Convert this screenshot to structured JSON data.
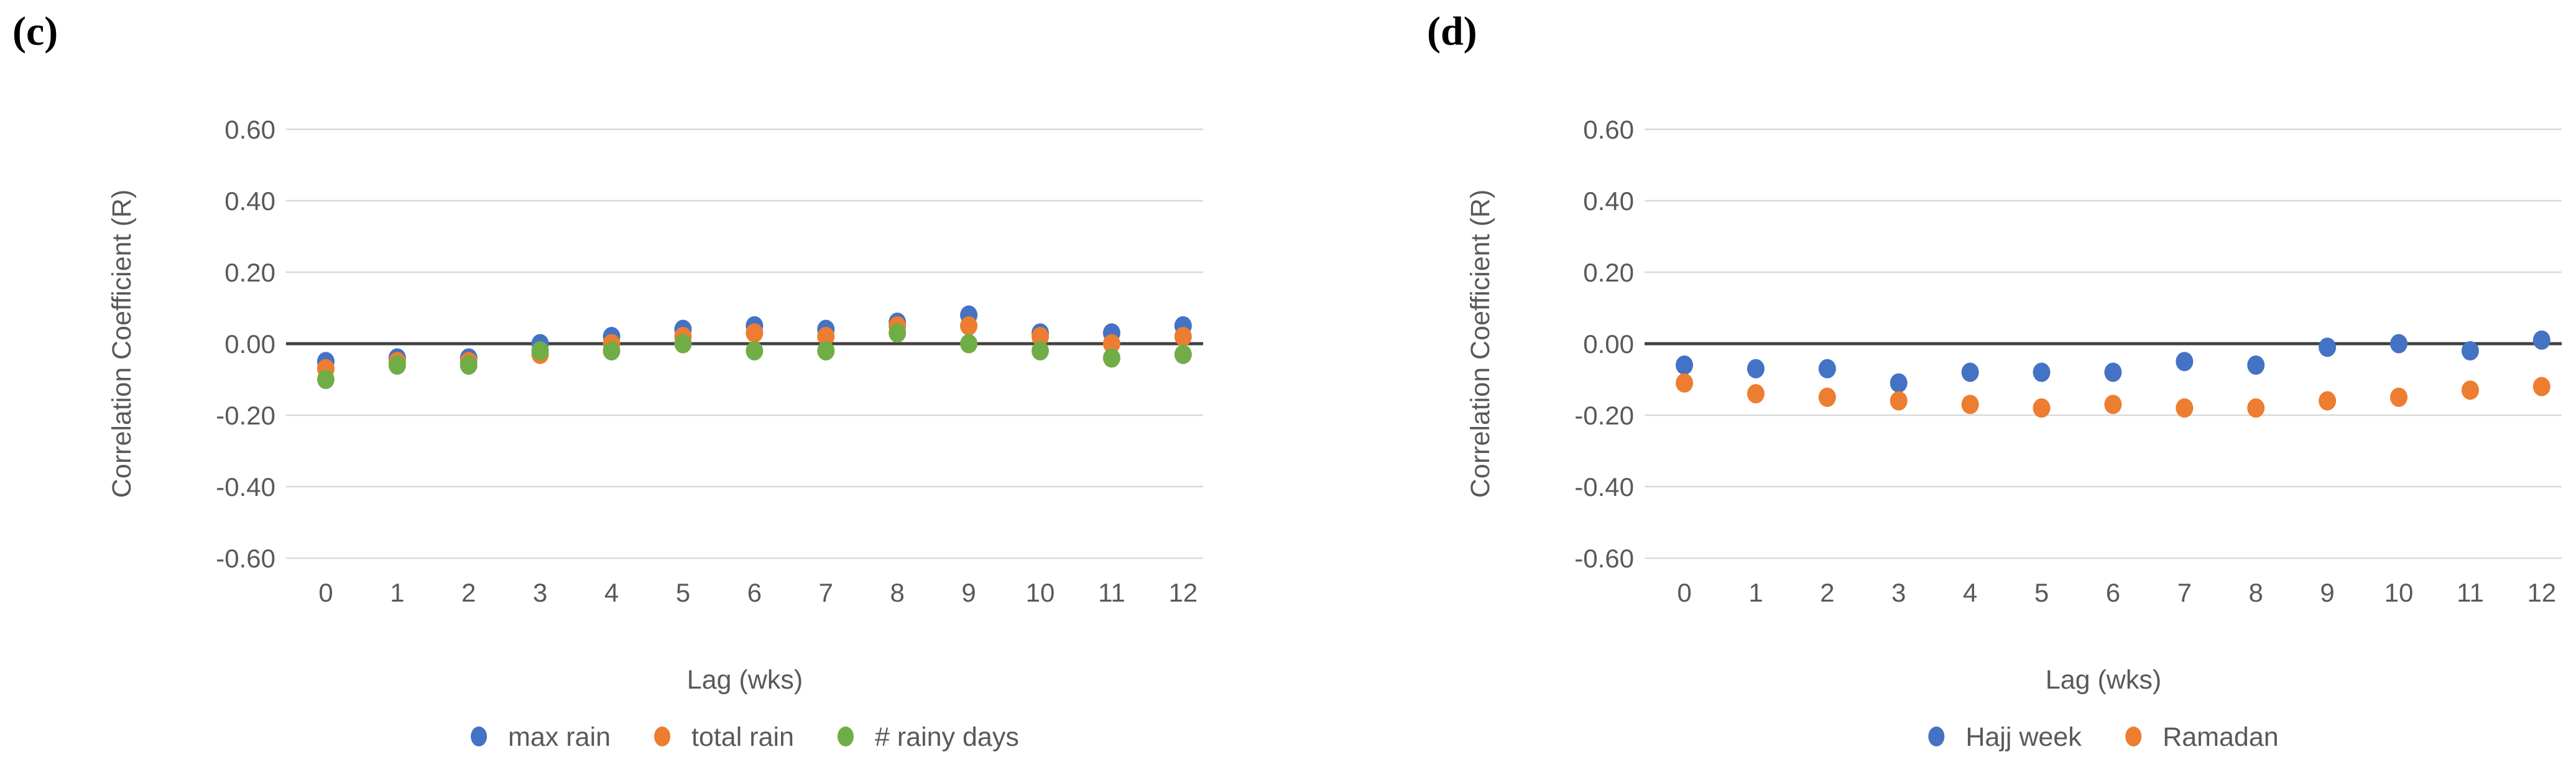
{
  "figure": {
    "background": "#ffffff",
    "text_color": "#595959",
    "grid_color": "#d9d9d9",
    "zero_line_color": "#404040",
    "panel_label_color": "#000000"
  },
  "colors": {
    "blue": "#4472C4",
    "orange": "#ED7D31",
    "green": "#70AD47"
  },
  "chart_data": [
    {
      "type": "scatter",
      "panel_label": "(c)",
      "title": "",
      "xlabel": "Lag (wks)",
      "ylabel": "Correlation Coefficient (R)",
      "x": [
        0,
        1,
        2,
        3,
        4,
        5,
        6,
        7,
        8,
        9,
        10,
        11,
        12
      ],
      "xtick_labels": [
        "0",
        "1",
        "2",
        "3",
        "4",
        "5",
        "6",
        "7",
        "8",
        "9",
        "10",
        "11",
        "12"
      ],
      "ylim": [
        -0.6,
        0.6
      ],
      "ytick_step": 0.2,
      "ytick_labels": [
        "0.60",
        "0.40",
        "0.20",
        "0.00",
        "-0.20",
        "-0.40",
        "-0.60"
      ],
      "grid": "horizontal",
      "zero_line": true,
      "legend_position": "bottom",
      "series": [
        {
          "name": "max rain",
          "color_key": "blue",
          "values": [
            -0.05,
            -0.04,
            -0.04,
            0.0,
            0.02,
            0.04,
            0.05,
            0.04,
            0.06,
            0.08,
            0.03,
            0.03,
            0.05
          ]
        },
        {
          "name": "total rain",
          "color_key": "orange",
          "values": [
            -0.07,
            -0.05,
            -0.05,
            -0.03,
            0.0,
            0.02,
            0.03,
            0.02,
            0.05,
            0.05,
            0.02,
            0.0,
            0.02
          ]
        },
        {
          "name": "# rainy days",
          "color_key": "green",
          "values": [
            -0.1,
            -0.06,
            -0.06,
            -0.02,
            -0.02,
            0.0,
            -0.02,
            -0.02,
            0.03,
            0.0,
            -0.02,
            -0.04,
            -0.03
          ]
        }
      ]
    },
    {
      "type": "scatter",
      "panel_label": "(d)",
      "title": "",
      "xlabel": "Lag (wks)",
      "ylabel": "Correlation Coefficient (R)",
      "x": [
        0,
        1,
        2,
        3,
        4,
        5,
        6,
        7,
        8,
        9,
        10,
        11,
        12
      ],
      "xtick_labels": [
        "0",
        "1",
        "2",
        "3",
        "4",
        "5",
        "6",
        "7",
        "8",
        "9",
        "10",
        "11",
        "12"
      ],
      "ylim": [
        -0.6,
        0.6
      ],
      "ytick_step": 0.2,
      "ytick_labels": [
        "0.60",
        "0.40",
        "0.20",
        "0.00",
        "-0.20",
        "-0.40",
        "-0.60"
      ],
      "grid": "horizontal",
      "zero_line": true,
      "legend_position": "bottom",
      "series": [
        {
          "name": "Hajj week",
          "color_key": "blue",
          "values": [
            -0.06,
            -0.07,
            -0.07,
            -0.11,
            -0.08,
            -0.08,
            -0.08,
            -0.05,
            -0.06,
            -0.01,
            0.0,
            -0.02,
            0.01
          ]
        },
        {
          "name": "Ramadan",
          "color_key": "orange",
          "values": [
            -0.11,
            -0.14,
            -0.15,
            -0.16,
            -0.17,
            -0.18,
            -0.17,
            -0.18,
            -0.18,
            -0.16,
            -0.15,
            -0.13,
            -0.12
          ]
        }
      ]
    }
  ]
}
